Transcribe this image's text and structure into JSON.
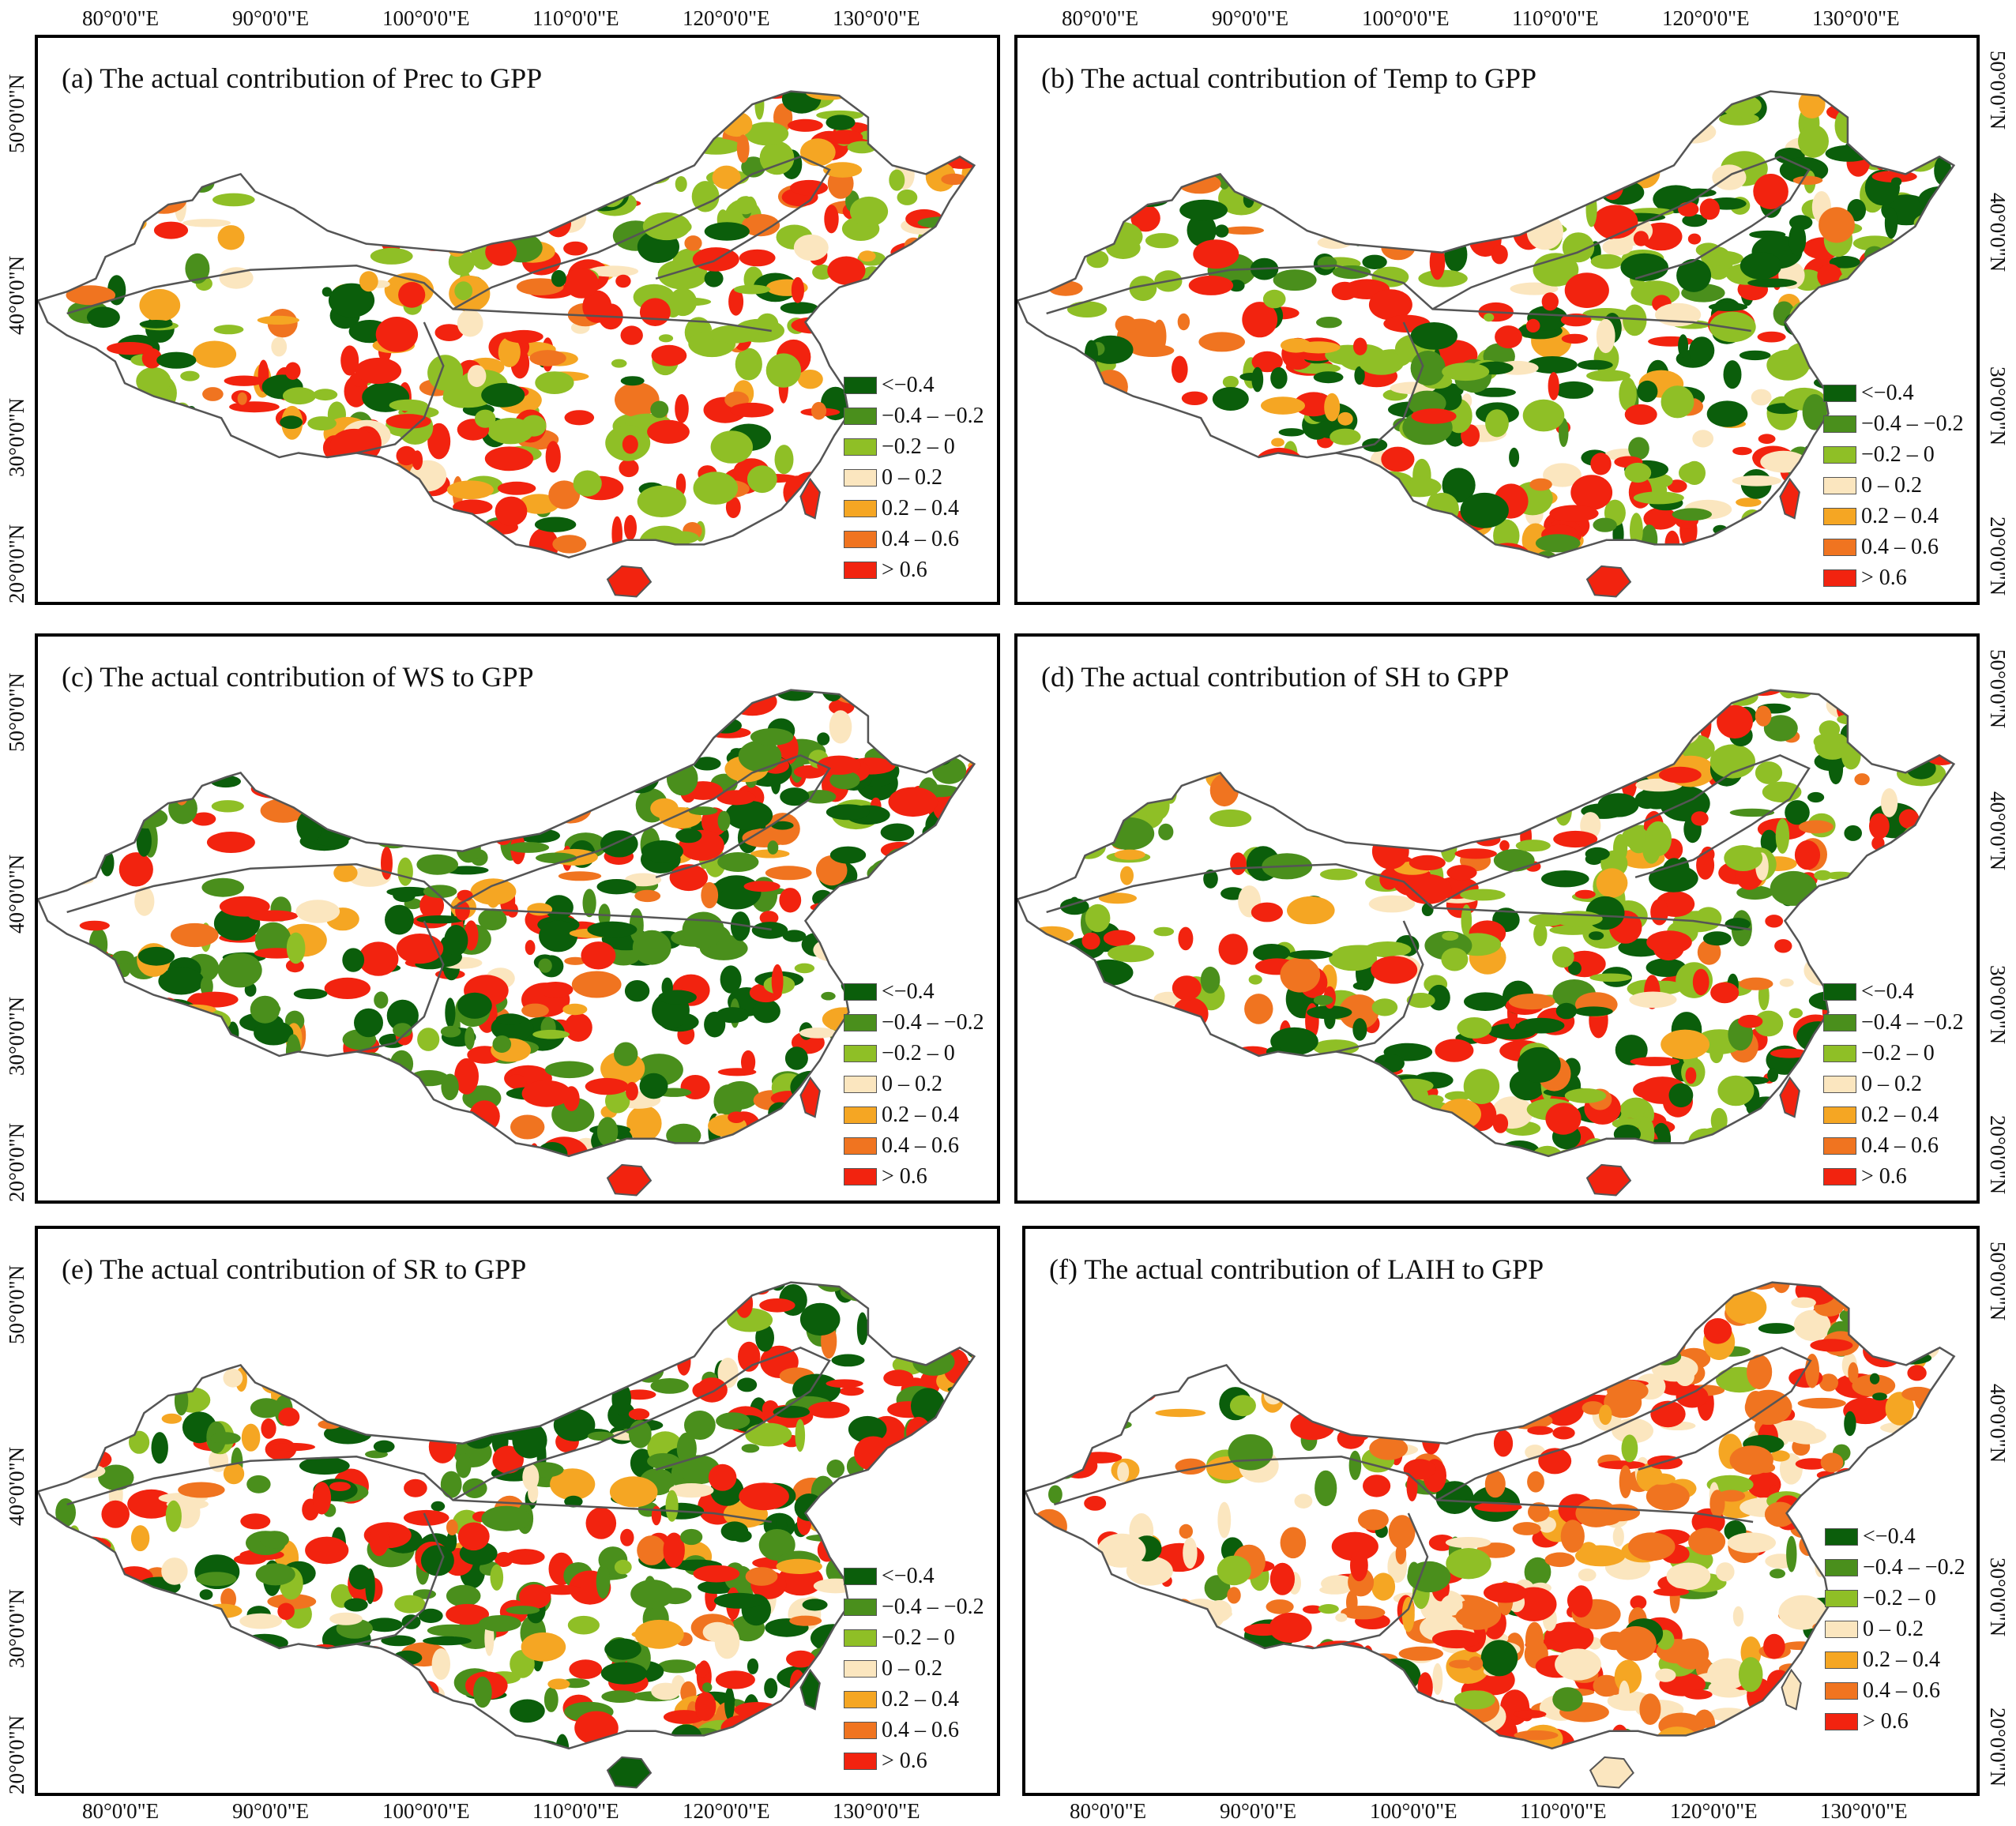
{
  "figure": {
    "lon_labels": [
      "80°0'0\"E",
      "90°0'0\"E",
      "100°0'0\"E",
      "110°0'0\"E",
      "120°0'0\"E",
      "130°0'0\"E"
    ],
    "lat_labels": [
      "50°0'0\"N",
      "40°0'0\"N",
      "30°0'0\"N",
      "20°0'0\"N"
    ]
  },
  "legend": {
    "items": [
      {
        "label": "<−0.4",
        "color": "#0b5e0b"
      },
      {
        "label": "−0.4 – −0.2",
        "color": "#4a8f1c"
      },
      {
        "label": "−0.2 – 0",
        "color": "#8fbf26"
      },
      {
        "label": "0 – 0.2",
        "color": "#fbe6bf"
      },
      {
        "label": "0.2 – 0.4",
        "color": "#f5a623"
      },
      {
        "label": "0.4 – 0.6",
        "color": "#f07420"
      },
      {
        "label": "> 0.6",
        "color": "#f2230f"
      }
    ]
  },
  "panels": [
    {
      "id": "a",
      "title": "(a) The actual contribution of Prec to GPP",
      "dominant": [
        "#f2230f",
        "#8fbf26",
        "#ffffff"
      ]
    },
    {
      "id": "b",
      "title": "(b) The actual contribution of Temp to GPP",
      "dominant": [
        "#f2230f",
        "#0b5e0b",
        "#8fbf26"
      ]
    },
    {
      "id": "c",
      "title": "(c) The actual contribution of WS to GPP",
      "dominant": [
        "#f2230f",
        "#0b5e0b",
        "#4a8f1c"
      ]
    },
    {
      "id": "d",
      "title": "(d) The actual contribution of SH to GPP",
      "dominant": [
        "#f2230f",
        "#0b5e0b",
        "#8fbf26"
      ]
    },
    {
      "id": "e",
      "title": "(e) The actual contribution of SR to GPP",
      "dominant": [
        "#0b5e0b",
        "#f2230f",
        "#4a8f1c"
      ]
    },
    {
      "id": "f",
      "title": "(f) The actual contribution of LAIH to GPP",
      "dominant": [
        "#fbe6bf",
        "#f07420",
        "#f2230f"
      ]
    }
  ]
}
